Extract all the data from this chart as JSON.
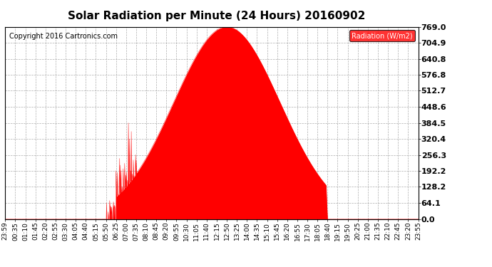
{
  "title": "Solar Radiation per Minute (24 Hours) 20160902",
  "copyright": "Copyright 2016 Cartronics.com",
  "legend_label": "Radiation (W/m2)",
  "yticks": [
    0.0,
    64.1,
    128.2,
    192.2,
    256.3,
    320.4,
    384.5,
    448.6,
    512.7,
    576.8,
    640.8,
    704.9,
    769.0
  ],
  "y_max": 769.0,
  "fill_color": "#FF0000",
  "line_color": "#FF0000",
  "background_color": "#FFFFFF",
  "grid_color": "#999999",
  "dashed_line_color": "#FF0000",
  "title_fontsize": 11,
  "copyright_fontsize": 7,
  "tick_fontsize": 6.5,
  "ytick_fontsize": 8,
  "legend_bg": "#FF0000",
  "legend_text_color": "#FFFFFF",
  "tick_labels": [
    "23:59",
    "00:35",
    "01:10",
    "01:45",
    "02:20",
    "02:55",
    "03:30",
    "04:05",
    "04:40",
    "05:15",
    "05:50",
    "06:25",
    "07:00",
    "07:35",
    "08:10",
    "08:45",
    "09:20",
    "09:55",
    "10:30",
    "11:05",
    "11:40",
    "12:15",
    "12:50",
    "13:25",
    "14:00",
    "14:35",
    "15:10",
    "15:45",
    "16:20",
    "16:55",
    "17:30",
    "18:05",
    "18:40",
    "19:15",
    "19:50",
    "20:25",
    "21:00",
    "21:35",
    "22:10",
    "22:45",
    "23:20",
    "23:55"
  ],
  "tick_minutes": [
    -1,
    35,
    70,
    105,
    140,
    175,
    210,
    245,
    280,
    315,
    350,
    385,
    420,
    455,
    490,
    525,
    560,
    595,
    630,
    665,
    700,
    735,
    770,
    805,
    840,
    875,
    910,
    945,
    980,
    1015,
    1050,
    1085,
    1120,
    1155,
    1190,
    1225,
    1260,
    1295,
    1330,
    1365,
    1400,
    1435
  ]
}
